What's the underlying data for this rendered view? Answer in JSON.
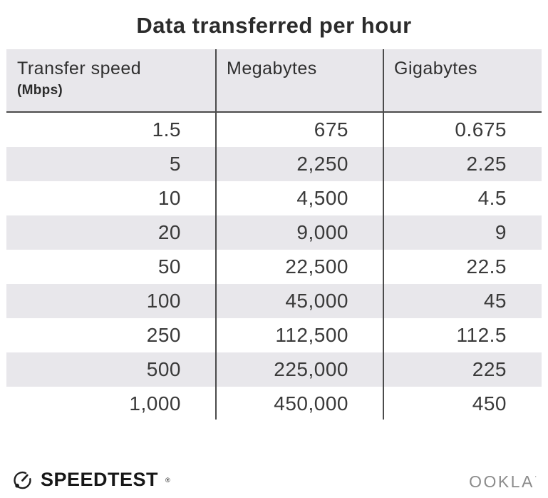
{
  "title": "Data transferred per hour",
  "table": {
    "columns": [
      {
        "label": "Transfer speed",
        "sublabel": "(Mbps)"
      },
      {
        "label": "Megabytes",
        "sublabel": ""
      },
      {
        "label": "Gigabytes",
        "sublabel": ""
      }
    ],
    "rows": [
      [
        "1.5",
        "675",
        "0.675"
      ],
      [
        "5",
        "2,250",
        "2.25"
      ],
      [
        "10",
        "4,500",
        "4.5"
      ],
      [
        "20",
        "9,000",
        "9"
      ],
      [
        "50",
        "22,500",
        "22.5"
      ],
      [
        "100",
        "45,000",
        "45"
      ],
      [
        "250",
        "112,500",
        "112.5"
      ],
      [
        "500",
        "225,000",
        "225"
      ],
      [
        "1,000",
        "450,000",
        "450"
      ]
    ]
  },
  "chart_data": {
    "type": "table",
    "title": "Data transferred per hour",
    "columns": [
      "Transfer speed (Mbps)",
      "Megabytes",
      "Gigabytes"
    ],
    "rows": [
      [
        1.5,
        675,
        0.675
      ],
      [
        5,
        2250,
        2.25
      ],
      [
        10,
        4500,
        4.5
      ],
      [
        20,
        9000,
        9
      ],
      [
        50,
        22500,
        22.5
      ],
      [
        100,
        45000,
        45
      ],
      [
        250,
        112500,
        112.5
      ],
      [
        500,
        225000,
        225
      ],
      [
        1000,
        450000,
        450
      ]
    ],
    "notes": "rows striped light gray #e8e7eb, numbers right-aligned, header shaded"
  },
  "footer": {
    "speedtest_label": "SPEEDTEST",
    "speedtest_trademark": "®",
    "ookla_label": "OOKLA",
    "ookla_trademark": "·"
  },
  "colors": {
    "header_bg": "#e8e7eb",
    "row_stripe": "#e8e7eb",
    "divider": "#4b4b4b",
    "title_text": "#2b2b2b",
    "body_text": "#3a3a3a",
    "speedtest_black": "#171717",
    "ookla_gray": "#8b8b8b"
  }
}
